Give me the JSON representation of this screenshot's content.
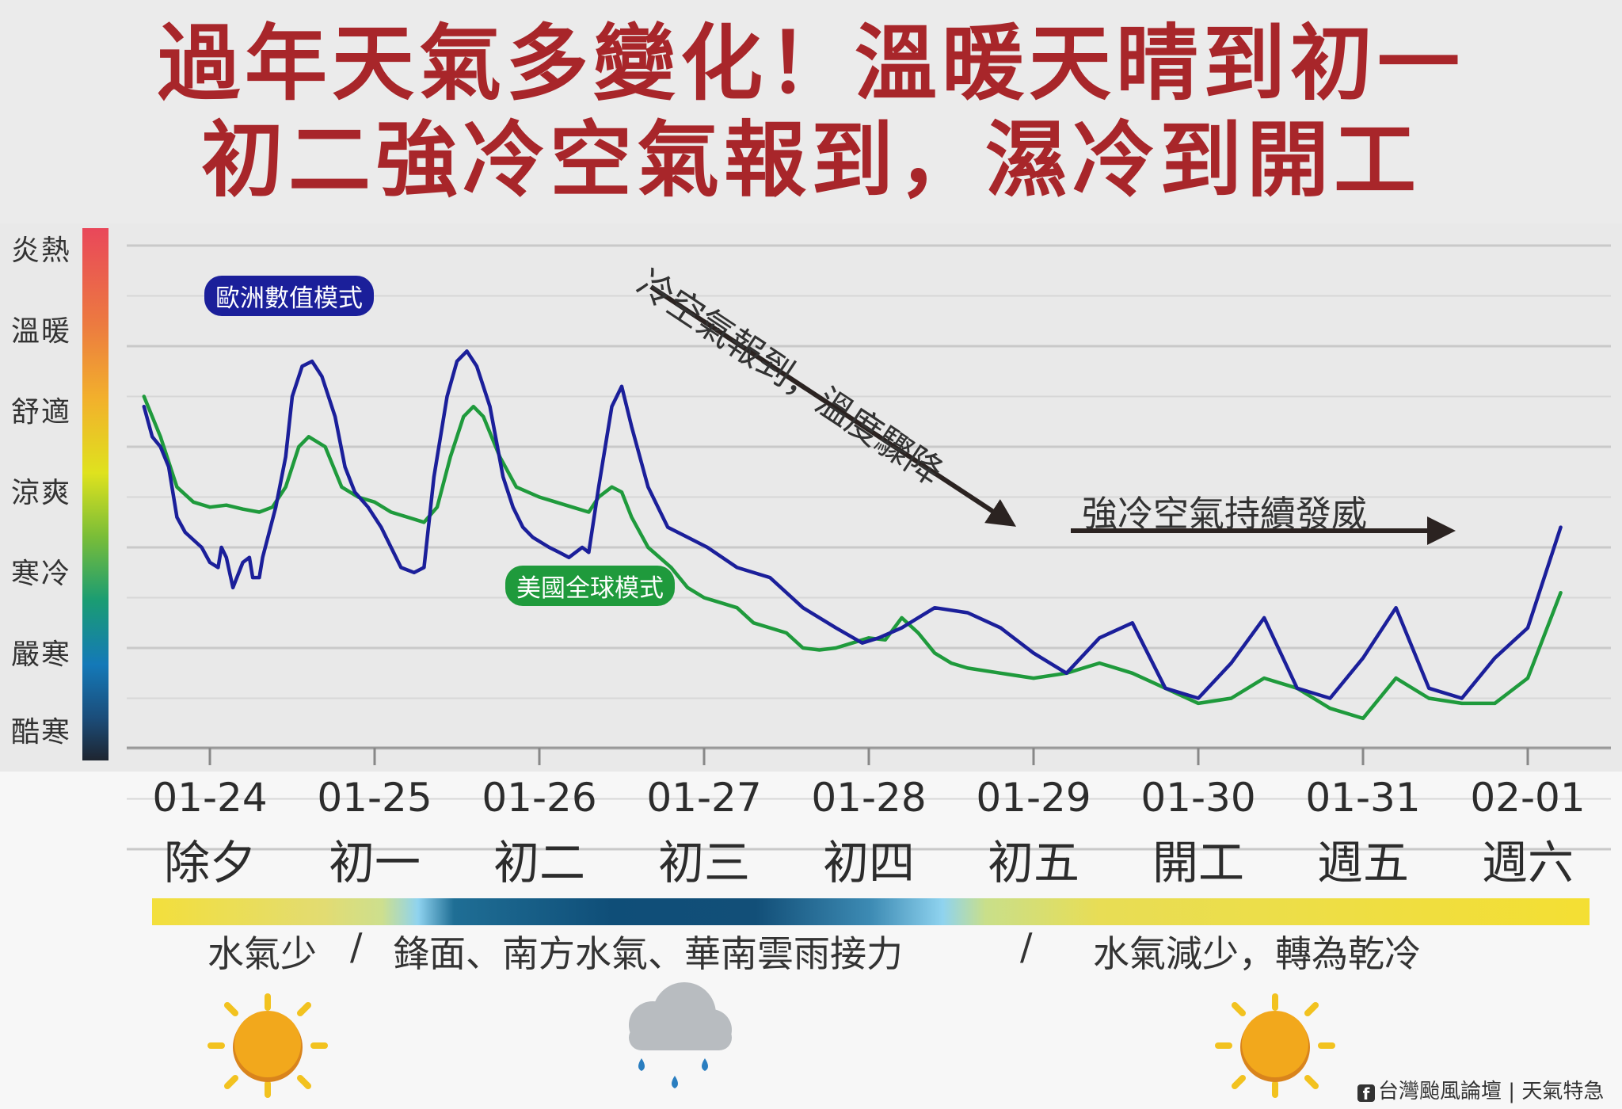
{
  "title": {
    "line1": "過年天氣多變化！溫暖天晴到初一",
    "line2": "初二強冷空氣報到，濕冷到開工"
  },
  "scale_labels": [
    "炎熱",
    "溫暖",
    "舒適",
    "涼爽",
    "寒冷",
    "嚴寒",
    "酷寒"
  ],
  "series_badges": {
    "ecmwf": "歐洲數值模式",
    "gfs": "美國全球模式"
  },
  "annotations": {
    "cold_arrival": "冷空氣報到，溫度驟降",
    "cold_persist": "強冷空氣持續發威"
  },
  "moisture": {
    "left": "水氣少",
    "sep1": "/",
    "middle": "鋒面、南方水氣、華南雲雨接力",
    "sep2": "/",
    "right": "水氣減少，轉為乾冷"
  },
  "credit": {
    "fb_icon": "facebook-icon",
    "source": "台灣颱風論壇",
    "divider": "|",
    "page": "天氣特急"
  },
  "colors": {
    "title": "#a8262a",
    "ecmwf": "#1b1f9a",
    "gfs": "#1f9a3c",
    "arrow": "#2b2321"
  },
  "chart_data": {
    "type": "line",
    "title": "",
    "xlabel": "",
    "ylabel": "",
    "ylim": [
      0,
      6
    ],
    "y_tick_labels": [
      "酷寒",
      "嚴寒",
      "寒冷",
      "涼爽",
      "舒適",
      "溫暖",
      "炎熱"
    ],
    "grid": true,
    "x_tick_labels": [
      {
        "date": "01-24",
        "day": "除夕"
      },
      {
        "date": "01-25",
        "day": "初一"
      },
      {
        "date": "01-26",
        "day": "初二"
      },
      {
        "date": "01-27",
        "day": "初三"
      },
      {
        "date": "01-28",
        "day": "初四"
      },
      {
        "date": "01-29",
        "day": "初五"
      },
      {
        "date": "01-30",
        "day": "開工"
      },
      {
        "date": "01-31",
        "day": "週五"
      },
      {
        "date": "02-01",
        "day": "週六"
      }
    ],
    "x_unit": "days from 01-24 00:00",
    "series": [
      {
        "name": "歐洲數值模式",
        "color": "#1b1f9a",
        "points": [
          [
            -0.4,
            4.4
          ],
          [
            -0.35,
            4.1
          ],
          [
            -0.3,
            4.0
          ],
          [
            -0.25,
            3.8
          ],
          [
            -0.2,
            3.3
          ],
          [
            -0.15,
            3.15
          ],
          [
            -0.05,
            3.0
          ],
          [
            0.0,
            2.85
          ],
          [
            0.05,
            2.8
          ],
          [
            0.07,
            3.0
          ],
          [
            0.1,
            2.9
          ],
          [
            0.14,
            2.6
          ],
          [
            0.2,
            2.85
          ],
          [
            0.24,
            2.9
          ],
          [
            0.26,
            2.7
          ],
          [
            0.3,
            2.7
          ],
          [
            0.32,
            2.9
          ],
          [
            0.4,
            3.4
          ],
          [
            0.46,
            3.9
          ],
          [
            0.5,
            4.5
          ],
          [
            0.56,
            4.8
          ],
          [
            0.62,
            4.85
          ],
          [
            0.68,
            4.7
          ],
          [
            0.76,
            4.3
          ],
          [
            0.82,
            3.8
          ],
          [
            0.88,
            3.55
          ],
          [
            0.96,
            3.4
          ],
          [
            1.04,
            3.2
          ],
          [
            1.1,
            3.0
          ],
          [
            1.16,
            2.8
          ],
          [
            1.24,
            2.75
          ],
          [
            1.3,
            2.8
          ],
          [
            1.36,
            3.7
          ],
          [
            1.44,
            4.5
          ],
          [
            1.5,
            4.85
          ],
          [
            1.56,
            4.95
          ],
          [
            1.62,
            4.8
          ],
          [
            1.7,
            4.4
          ],
          [
            1.78,
            3.7
          ],
          [
            1.84,
            3.4
          ],
          [
            1.9,
            3.2
          ],
          [
            1.96,
            3.1
          ],
          [
            2.06,
            3.0
          ],
          [
            2.12,
            2.95
          ],
          [
            2.18,
            2.9
          ],
          [
            2.26,
            3.0
          ],
          [
            2.3,
            2.95
          ],
          [
            2.36,
            3.6
          ],
          [
            2.44,
            4.4
          ],
          [
            2.5,
            4.6
          ],
          [
            2.56,
            4.2
          ],
          [
            2.66,
            3.6
          ],
          [
            2.78,
            3.2
          ],
          [
            2.9,
            3.1
          ],
          [
            3.02,
            3.0
          ],
          [
            3.2,
            2.8
          ],
          [
            3.4,
            2.7
          ],
          [
            3.6,
            2.4
          ],
          [
            3.8,
            2.2
          ],
          [
            3.96,
            2.05
          ],
          [
            4.06,
            2.1
          ],
          [
            4.2,
            2.2
          ],
          [
            4.4,
            2.4
          ],
          [
            4.6,
            2.35
          ],
          [
            4.8,
            2.2
          ],
          [
            5.0,
            1.95
          ],
          [
            5.2,
            1.75
          ],
          [
            5.4,
            2.1
          ],
          [
            5.6,
            2.25
          ],
          [
            5.8,
            1.6
          ],
          [
            6.0,
            1.5
          ],
          [
            6.2,
            1.85
          ],
          [
            6.4,
            2.3
          ],
          [
            6.6,
            1.6
          ],
          [
            6.8,
            1.5
          ],
          [
            7.0,
            1.9
          ],
          [
            7.2,
            2.4
          ],
          [
            7.4,
            1.6
          ],
          [
            7.6,
            1.5
          ],
          [
            7.8,
            1.9
          ],
          [
            8.0,
            2.2
          ],
          [
            8.2,
            3.2
          ]
        ]
      },
      {
        "name": "美國全球模式",
        "color": "#1f9a3c",
        "points": [
          [
            -0.4,
            4.5
          ],
          [
            -0.3,
            4.1
          ],
          [
            -0.2,
            3.6
          ],
          [
            -0.1,
            3.45
          ],
          [
            0.0,
            3.4
          ],
          [
            0.1,
            3.42
          ],
          [
            0.2,
            3.38
          ],
          [
            0.3,
            3.35
          ],
          [
            0.38,
            3.4
          ],
          [
            0.46,
            3.6
          ],
          [
            0.54,
            4.0
          ],
          [
            0.6,
            4.1
          ],
          [
            0.7,
            4.0
          ],
          [
            0.8,
            3.6
          ],
          [
            0.9,
            3.5
          ],
          [
            1.0,
            3.45
          ],
          [
            1.1,
            3.35
          ],
          [
            1.2,
            3.3
          ],
          [
            1.3,
            3.25
          ],
          [
            1.38,
            3.4
          ],
          [
            1.46,
            3.9
          ],
          [
            1.54,
            4.3
          ],
          [
            1.6,
            4.4
          ],
          [
            1.66,
            4.3
          ],
          [
            1.76,
            3.9
          ],
          [
            1.86,
            3.6
          ],
          [
            2.0,
            3.5
          ],
          [
            2.1,
            3.45
          ],
          [
            2.2,
            3.4
          ],
          [
            2.3,
            3.35
          ],
          [
            2.36,
            3.5
          ],
          [
            2.44,
            3.6
          ],
          [
            2.5,
            3.55
          ],
          [
            2.56,
            3.3
          ],
          [
            2.66,
            3.0
          ],
          [
            2.8,
            2.8
          ],
          [
            2.9,
            2.6
          ],
          [
            3.0,
            2.5
          ],
          [
            3.1,
            2.45
          ],
          [
            3.2,
            2.4
          ],
          [
            3.3,
            2.25
          ],
          [
            3.4,
            2.2
          ],
          [
            3.5,
            2.15
          ],
          [
            3.6,
            2.0
          ],
          [
            3.7,
            1.98
          ],
          [
            3.8,
            2.0
          ],
          [
            3.9,
            2.05
          ],
          [
            4.0,
            2.1
          ],
          [
            4.1,
            2.08
          ],
          [
            4.2,
            2.3
          ],
          [
            4.3,
            2.15
          ],
          [
            4.4,
            1.95
          ],
          [
            4.5,
            1.85
          ],
          [
            4.6,
            1.8
          ],
          [
            4.8,
            1.75
          ],
          [
            5.0,
            1.7
          ],
          [
            5.2,
            1.75
          ],
          [
            5.4,
            1.85
          ],
          [
            5.6,
            1.75
          ],
          [
            5.8,
            1.6
          ],
          [
            6.0,
            1.45
          ],
          [
            6.2,
            1.5
          ],
          [
            6.4,
            1.7
          ],
          [
            6.6,
            1.6
          ],
          [
            6.8,
            1.4
          ],
          [
            7.0,
            1.3
          ],
          [
            7.2,
            1.7
          ],
          [
            7.4,
            1.5
          ],
          [
            7.6,
            1.45
          ],
          [
            7.8,
            1.45
          ],
          [
            8.0,
            1.7
          ],
          [
            8.2,
            2.55
          ]
        ]
      }
    ]
  }
}
